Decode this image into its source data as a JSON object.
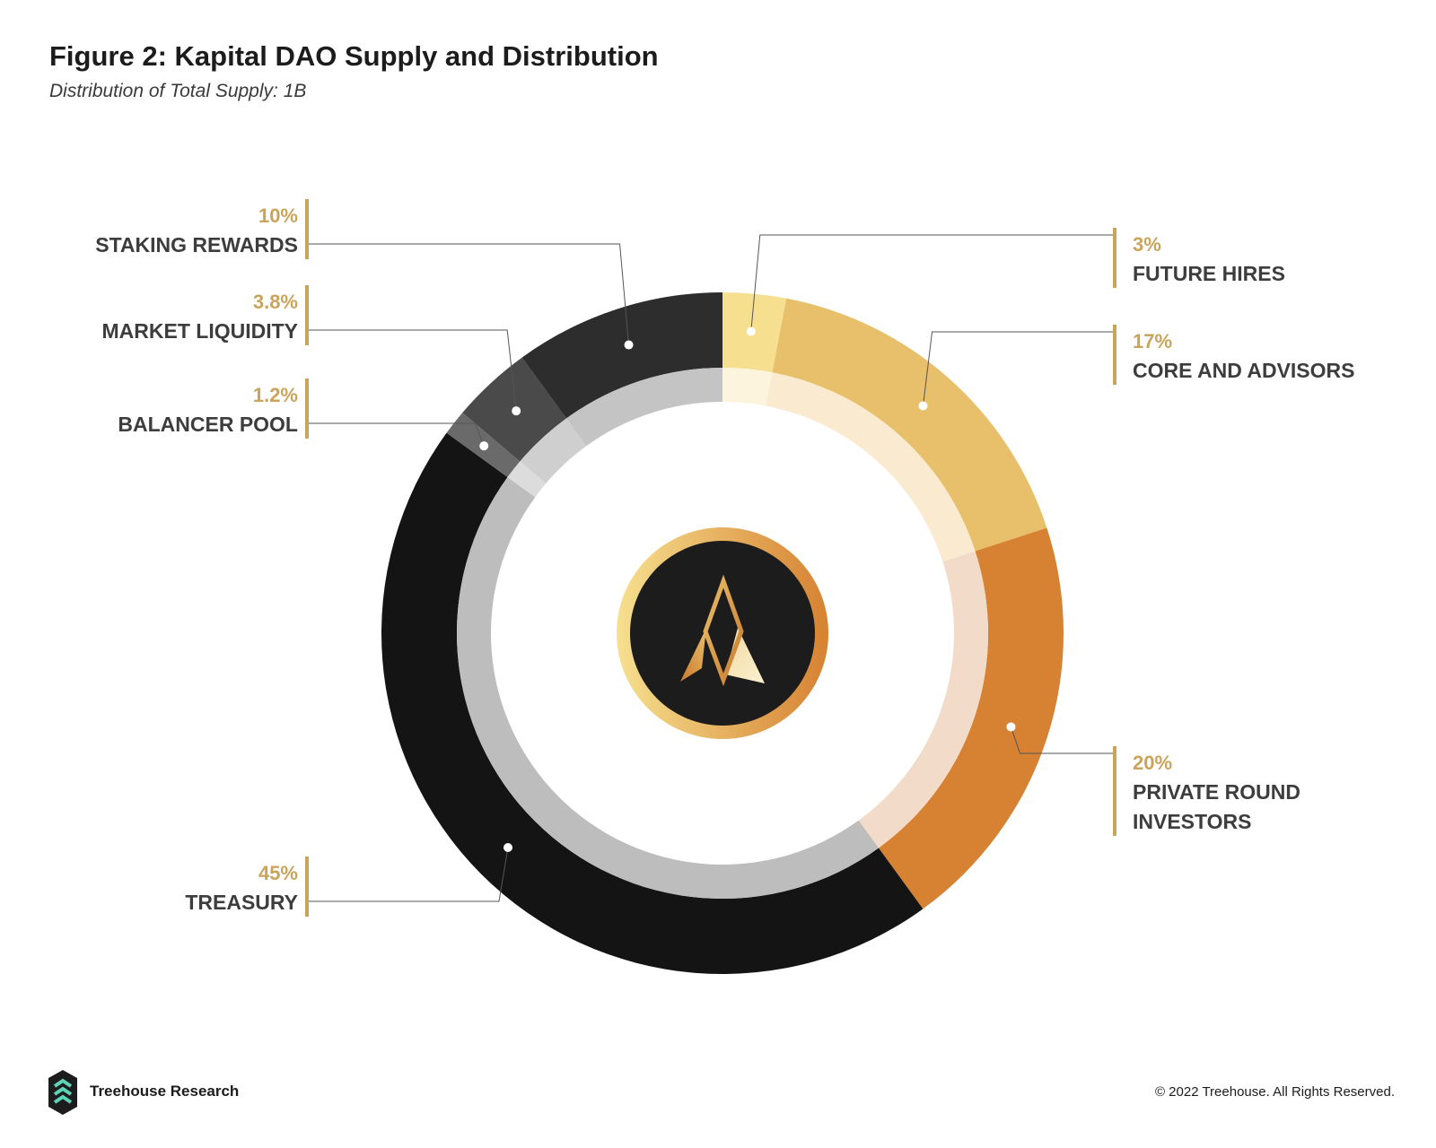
{
  "title": "Figure 2: Kapital DAO Supply and Distribution",
  "subtitle": "Distribution of Total Supply: 1B",
  "footer": {
    "brand": "Treehouse Research",
    "copyright": "© 2022 Treehouse. All Rights Reserved."
  },
  "colors": {
    "accent_gold": "#c9a45c",
    "label_text": "#3d3d3d"
  },
  "chart_data": {
    "type": "pie",
    "title": "Figure 2: Kapital DAO Supply and Distribution",
    "subtitle": "Distribution of Total Supply: 1B",
    "slices": [
      {
        "label": "FUTURE HIRES",
        "value": 3,
        "value_label": "3%",
        "color": "#f6e08f",
        "inner_color": "#fcf4dc"
      },
      {
        "label": "CORE AND ADVISORS",
        "value": 17,
        "value_label": "17%",
        "color": "#e8bf6a",
        "inner_color": "#f9ead0"
      },
      {
        "label": "PRIVATE ROUND INVESTORS",
        "value": 20,
        "value_label": "20%",
        "color": "#d68232",
        "inner_color": "#f2dcc9"
      },
      {
        "label": "TREASURY",
        "value": 45,
        "value_label": "45%",
        "color": "#141414",
        "inner_color": "#bdbdbd"
      },
      {
        "label": "BALANCER POOL",
        "value": 1.2,
        "value_label": "1.2%",
        "color": "#6a6a6a",
        "inner_color": "#dcdcdc"
      },
      {
        "label": "MARKET LIQUIDITY",
        "value": 3.8,
        "value_label": "3.8%",
        "color": "#4a4a4a",
        "inner_color": "#cfcfcf"
      },
      {
        "label": "STAKING REWARDS",
        "value": 10,
        "value_label": "10%",
        "color": "#2d2d2d",
        "inner_color": "#c4c4c4"
      }
    ]
  }
}
